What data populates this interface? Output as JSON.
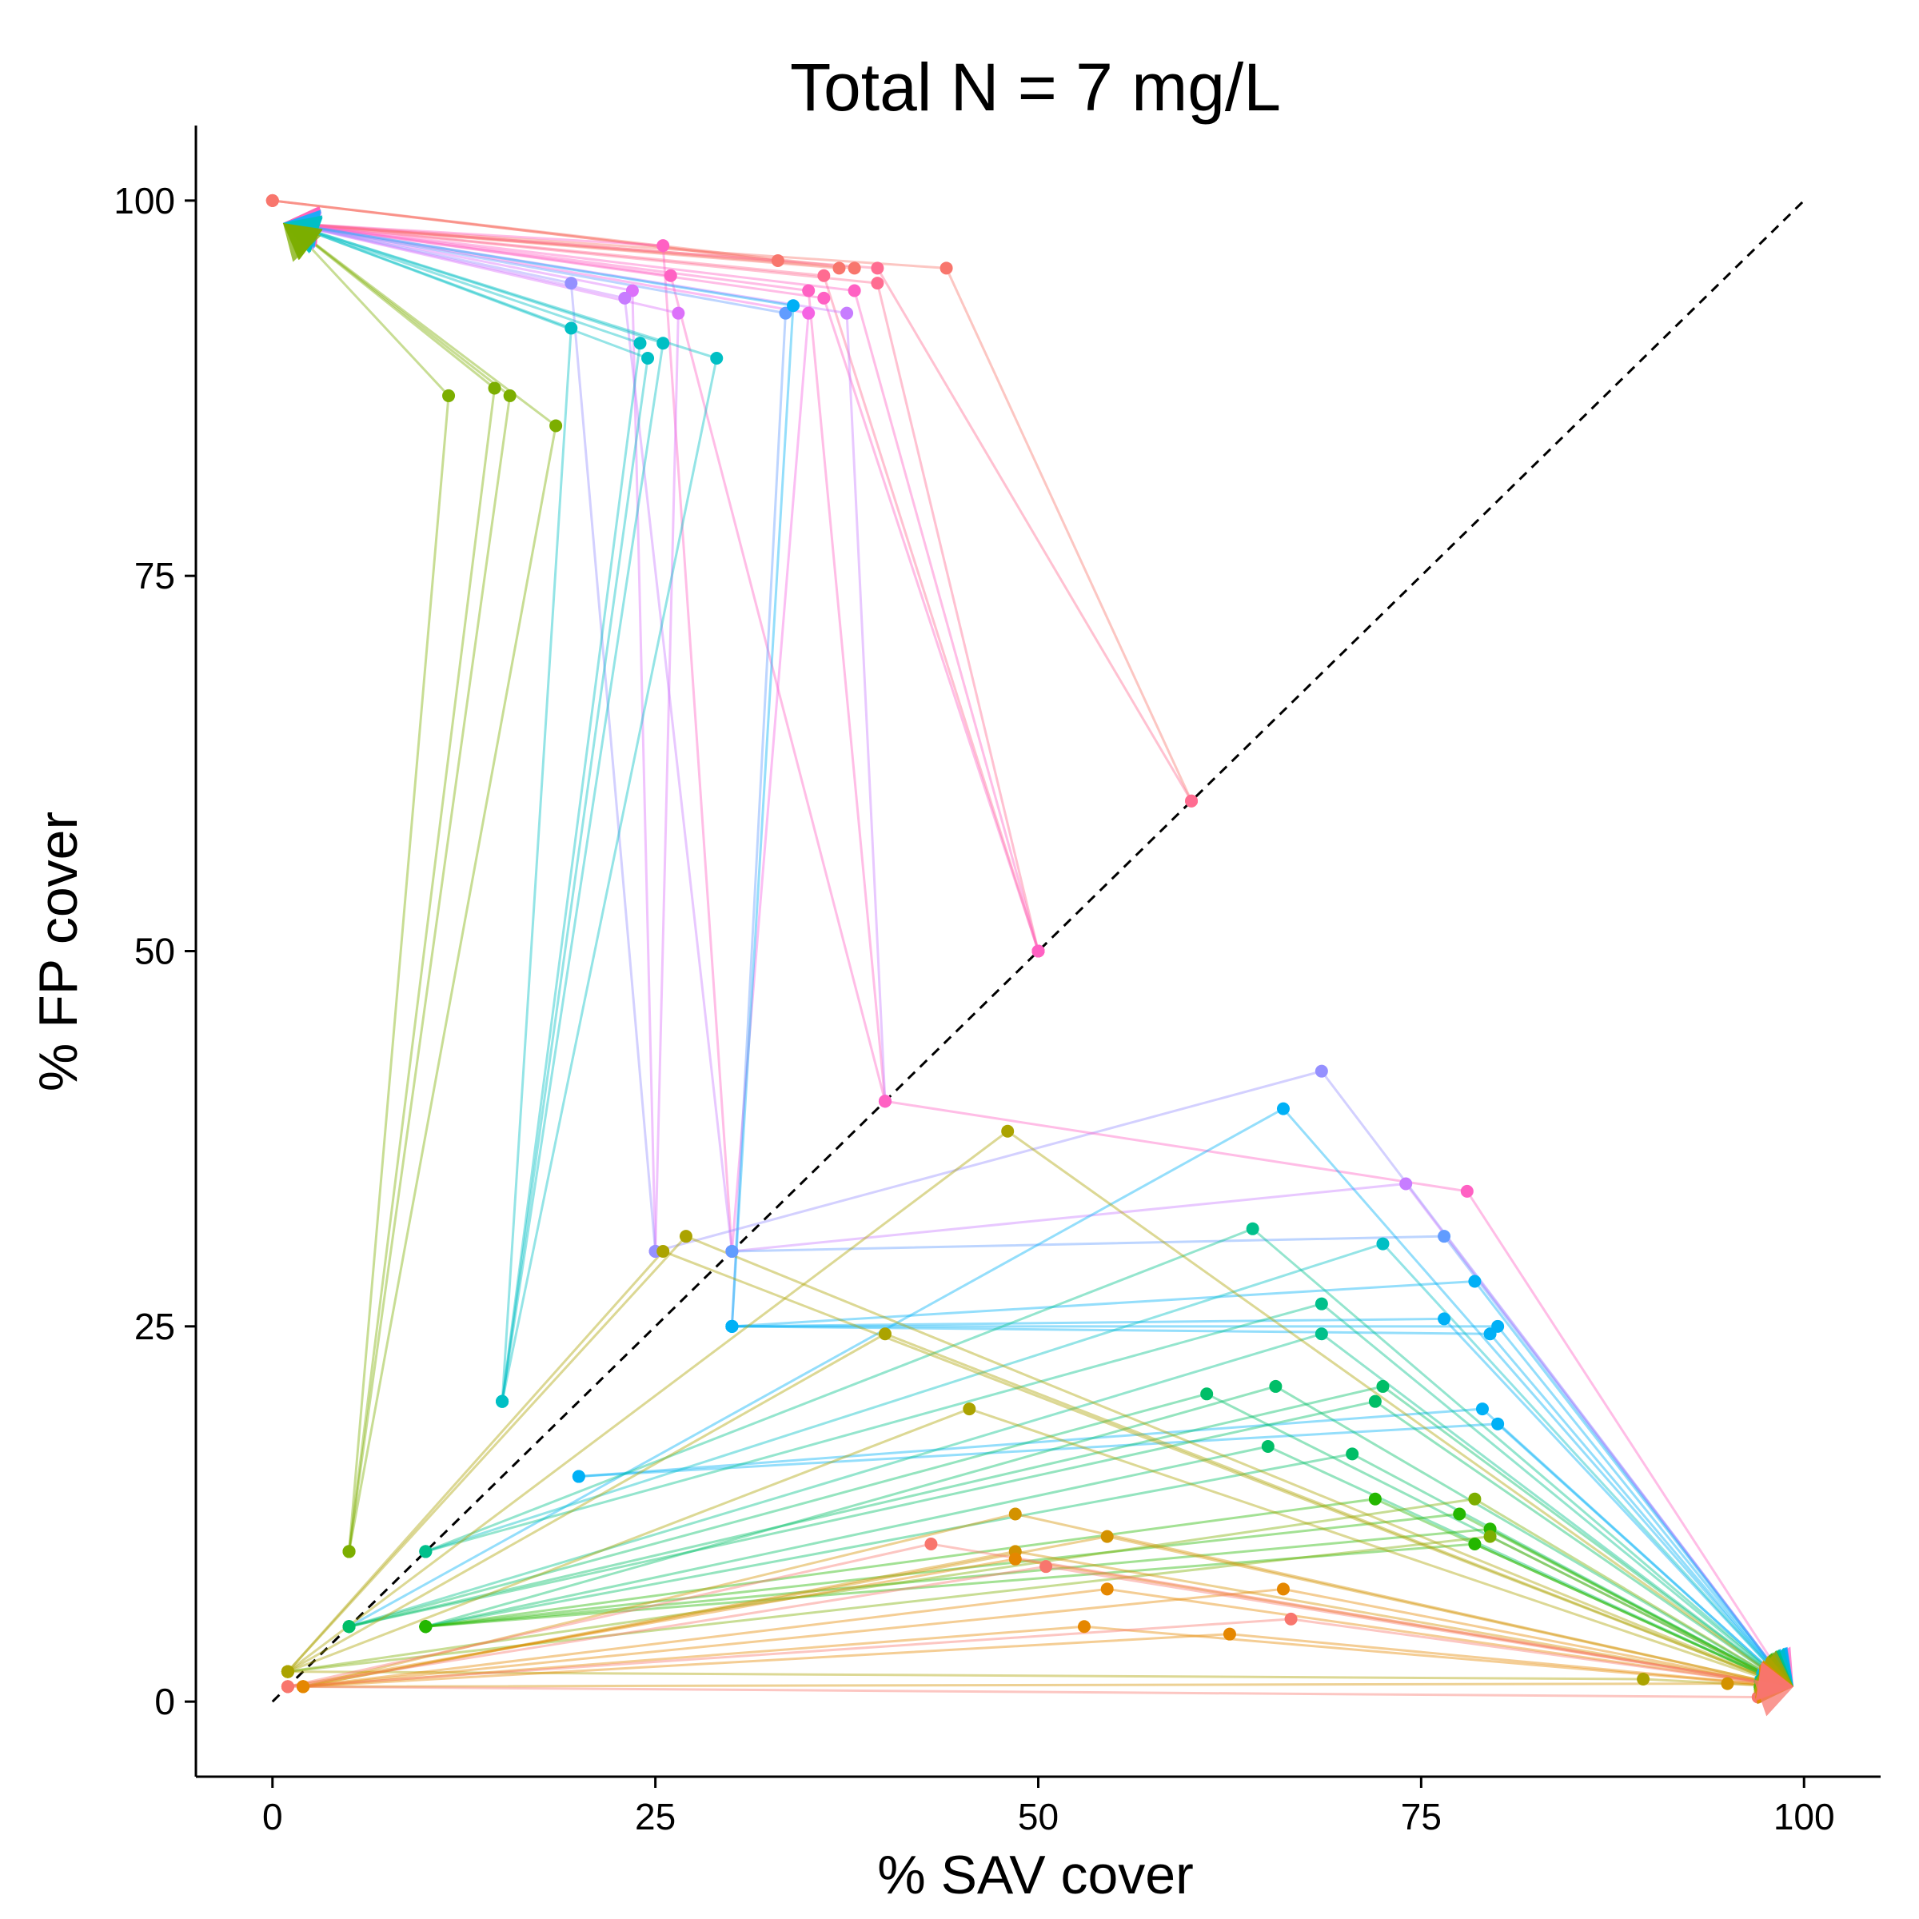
{
  "chart_data": {
    "type": "line",
    "title": "Total N = 7 mg/L",
    "xlabel": "% SAV cover",
    "ylabel": "% FP cover",
    "xlim": [
      -5,
      105
    ],
    "ylim": [
      -5,
      105
    ],
    "xticks": [
      0,
      25,
      50,
      75,
      100
    ],
    "yticks": [
      0,
      25,
      50,
      75,
      100
    ],
    "grid": false,
    "legend": "none",
    "reference_line": {
      "style": "dashed",
      "from": [
        0,
        0
      ],
      "to": [
        100,
        100
      ]
    },
    "end_markers": {
      "top_left": {
        "x": 1,
        "y": 98.5
      },
      "bottom_right": {
        "x": 99,
        "y": 1
      }
    },
    "series": [
      {
        "color": "#F8766D",
        "start": [
          0,
          100
        ],
        "mid": [
          38,
          95.5
        ],
        "end": "top"
      },
      {
        "color": "#F8766D",
        "start": [
          60,
          60
        ],
        "mid": [
          44,
          95.5
        ],
        "end": "top"
      },
      {
        "color": "#F8766D",
        "start": [
          0,
          100
        ],
        "mid": [
          37,
          95.5
        ],
        "end": "top"
      },
      {
        "color": "#F8766D",
        "start": [
          0,
          100
        ],
        "mid": [
          33,
          96
        ],
        "end": "top"
      },
      {
        "color": "#FF6C91",
        "start": [
          60,
          60
        ],
        "mid": [
          39.5,
          95.5
        ],
        "end": "top"
      },
      {
        "color": "#FF6C91",
        "start": [
          50,
          50
        ],
        "mid": [
          36,
          95
        ],
        "end": "top"
      },
      {
        "color": "#FF6C91",
        "start": [
          50,
          50
        ],
        "mid": [
          39.5,
          94.5
        ],
        "end": "top"
      },
      {
        "color": "#FF61C3",
        "start": [
          30,
          30
        ],
        "mid": [
          25.5,
          97
        ],
        "end": "top"
      },
      {
        "color": "#FF61C3",
        "start": [
          40,
          40
        ],
        "mid": [
          26,
          95
        ],
        "end": "top"
      },
      {
        "color": "#FF61C3",
        "start": [
          40,
          40
        ],
        "mid": [
          35,
          94
        ],
        "end": "top"
      },
      {
        "color": "#FF61C3",
        "start": [
          50,
          50
        ],
        "mid": [
          36,
          93.5
        ],
        "end": "top"
      },
      {
        "color": "#FF61C3",
        "start": [
          50,
          50
        ],
        "mid": [
          38,
          94
        ],
        "end": "top"
      },
      {
        "color": "#F564E3",
        "start": [
          30,
          30
        ],
        "mid": [
          35,
          92.5
        ],
        "end": "top"
      },
      {
        "color": "#DC71FA",
        "start": [
          25,
          30
        ],
        "mid": [
          23.5,
          94
        ],
        "end": "top"
      },
      {
        "color": "#DC71FA",
        "start": [
          25,
          30
        ],
        "mid": [
          26.5,
          92.5
        ],
        "end": "top"
      },
      {
        "color": "#C77CFF",
        "start": [
          30,
          30
        ],
        "mid": [
          23,
          93.5
        ],
        "end": "top"
      },
      {
        "color": "#C77CFF",
        "start": [
          40,
          40
        ],
        "mid": [
          37.5,
          92.5
        ],
        "end": "top"
      },
      {
        "color": "#9590FF",
        "start": [
          25,
          30
        ],
        "mid": [
          19.5,
          94.5
        ],
        "end": "top"
      },
      {
        "color": "#619CFF",
        "start": [
          30,
          25
        ],
        "mid": [
          33.5,
          92.5
        ],
        "end": "top"
      },
      {
        "color": "#00B0F6",
        "start": [
          30,
          25
        ],
        "mid": [
          34,
          93
        ],
        "end": "top"
      },
      {
        "color": "#00BFC4",
        "start": [
          15,
          20
        ],
        "mid": [
          19.5,
          91.5
        ],
        "end": "top"
      },
      {
        "color": "#00BFC4",
        "start": [
          15,
          20
        ],
        "mid": [
          24,
          90.5
        ],
        "end": "top"
      },
      {
        "color": "#00BFC4",
        "start": [
          15,
          20
        ],
        "mid": [
          25.5,
          90.5
        ],
        "end": "top"
      },
      {
        "color": "#00BFC4",
        "start": [
          15,
          20
        ],
        "mid": [
          24.5,
          89.5
        ],
        "end": "top"
      },
      {
        "color": "#00BFC4",
        "start": [
          15,
          20
        ],
        "mid": [
          29,
          89.5
        ],
        "end": "top"
      },
      {
        "color": "#7CAE00",
        "start": [
          5,
          10
        ],
        "mid": [
          11.5,
          87
        ],
        "end": "top"
      },
      {
        "color": "#7CAE00",
        "start": [
          5,
          10
        ],
        "mid": [
          14.5,
          87.5
        ],
        "end": "top"
      },
      {
        "color": "#7CAE00",
        "start": [
          5,
          10
        ],
        "mid": [
          15.5,
          87
        ],
        "end": "top"
      },
      {
        "color": "#7CAE00",
        "start": [
          5,
          10
        ],
        "mid": [
          18.5,
          85
        ],
        "end": "top"
      },
      {
        "color": "#9590FF",
        "start": [
          25,
          30
        ],
        "mid": [
          68.5,
          42
        ],
        "end": "bottom"
      },
      {
        "color": "#C77CFF",
        "start": [
          30,
          30
        ],
        "mid": [
          74,
          34.5
        ],
        "end": "bottom"
      },
      {
        "color": "#FF61C3",
        "start": [
          40,
          40
        ],
        "mid": [
          78,
          34
        ],
        "end": "bottom"
      },
      {
        "color": "#619CFF",
        "start": [
          30,
          30
        ],
        "mid": [
          76.5,
          31
        ],
        "end": "bottom"
      },
      {
        "color": "#00B0F6",
        "start": [
          5,
          5
        ],
        "mid": [
          66,
          39.5
        ],
        "end": "bottom"
      },
      {
        "color": "#00B0F6",
        "start": [
          30,
          25
        ],
        "mid": [
          78.5,
          28
        ],
        "end": "bottom"
      },
      {
        "color": "#00B0F6",
        "start": [
          30,
          25
        ],
        "mid": [
          76.5,
          25.5
        ],
        "end": "bottom"
      },
      {
        "color": "#00B0F6",
        "start": [
          30,
          25
        ],
        "mid": [
          79.5,
          24.5
        ],
        "end": "bottom"
      },
      {
        "color": "#00B0F6",
        "start": [
          30,
          25
        ],
        "mid": [
          80,
          25
        ],
        "end": "bottom"
      },
      {
        "color": "#00B0F6",
        "start": [
          20,
          15
        ],
        "mid": [
          79,
          19.5
        ],
        "end": "bottom"
      },
      {
        "color": "#00B0F6",
        "start": [
          20,
          15
        ],
        "mid": [
          80,
          18.5
        ],
        "end": "bottom"
      },
      {
        "color": "#00BFC4",
        "start": [
          10,
          10
        ],
        "mid": [
          72.5,
          30.5
        ],
        "end": "bottom"
      },
      {
        "color": "#00C08B",
        "start": [
          10,
          10
        ],
        "mid": [
          64,
          31.5
        ],
        "end": "bottom"
      },
      {
        "color": "#00C08B",
        "start": [
          10,
          10
        ],
        "mid": [
          68.5,
          26.5
        ],
        "end": "bottom"
      },
      {
        "color": "#00C08B",
        "start": [
          5,
          5
        ],
        "mid": [
          68.5,
          24.5
        ],
        "end": "bottom"
      },
      {
        "color": "#00BE67",
        "start": [
          5,
          5
        ],
        "mid": [
          61,
          20.5
        ],
        "end": "bottom"
      },
      {
        "color": "#00BE67",
        "start": [
          10,
          5
        ],
        "mid": [
          65.5,
          21
        ],
        "end": "bottom"
      },
      {
        "color": "#00BE67",
        "start": [
          5,
          5
        ],
        "mid": [
          72.5,
          21
        ],
        "end": "bottom"
      },
      {
        "color": "#00BE67",
        "start": [
          5,
          5
        ],
        "mid": [
          72,
          20
        ],
        "end": "bottom"
      },
      {
        "color": "#00BE67",
        "start": [
          10,
          5
        ],
        "mid": [
          65,
          17
        ],
        "end": "bottom"
      },
      {
        "color": "#00BE67",
        "start": [
          10,
          5
        ],
        "mid": [
          70.5,
          16.5
        ],
        "end": "bottom"
      },
      {
        "color": "#24B700",
        "start": [
          10,
          5
        ],
        "mid": [
          72,
          13.5
        ],
        "end": "bottom"
      },
      {
        "color": "#24B700",
        "start": [
          10,
          5
        ],
        "mid": [
          77.5,
          12.5
        ],
        "end": "bottom"
      },
      {
        "color": "#24B700",
        "start": [
          10,
          5
        ],
        "mid": [
          79.5,
          11.5
        ],
        "end": "bottom"
      },
      {
        "color": "#24B700",
        "start": [
          10,
          5
        ],
        "mid": [
          78.5,
          10.5
        ],
        "end": "bottom"
      },
      {
        "color": "#7CAE00",
        "start": [
          1,
          2
        ],
        "mid": [
          78.5,
          13.5
        ],
        "end": "bottom"
      },
      {
        "color": "#7CAE00",
        "start": [
          1,
          2
        ],
        "mid": [
          79.5,
          11
        ],
        "end": "bottom"
      },
      {
        "color": "#ABA300",
        "start": [
          1,
          2
        ],
        "mid": [
          48,
          38
        ],
        "end": "bottom"
      },
      {
        "color": "#ABA300",
        "start": [
          1,
          2
        ],
        "mid": [
          27,
          31
        ],
        "end": "bottom"
      },
      {
        "color": "#ABA300",
        "start": [
          1,
          2
        ],
        "mid": [
          25.5,
          30
        ],
        "end": "bottom"
      },
      {
        "color": "#ABA300",
        "start": [
          1,
          2
        ],
        "mid": [
          40,
          24.5
        ],
        "end": "bottom"
      },
      {
        "color": "#ABA300",
        "start": [
          1,
          2
        ],
        "mid": [
          45.5,
          19.5
        ],
        "end": "bottom"
      },
      {
        "color": "#ABA300",
        "start": [
          1,
          2
        ],
        "mid": [
          89.5,
          1.5
        ],
        "end": "bottom"
      },
      {
        "color": "#D39200",
        "start": [
          2,
          1
        ],
        "mid": [
          48.5,
          12.5
        ],
        "end": "bottom"
      },
      {
        "color": "#D39200",
        "start": [
          2,
          1
        ],
        "mid": [
          54.5,
          11
        ],
        "end": "bottom"
      },
      {
        "color": "#D39200",
        "start": [
          2,
          1
        ],
        "mid": [
          48.5,
          10
        ],
        "end": "bottom"
      },
      {
        "color": "#D39200",
        "start": [
          2,
          1
        ],
        "mid": [
          95,
          1.2
        ],
        "end": "bottom"
      },
      {
        "color": "#E58700",
        "start": [
          1,
          1
        ],
        "mid": [
          48.5,
          9.5
        ],
        "end": "bottom"
      },
      {
        "color": "#E58700",
        "start": [
          2,
          1
        ],
        "mid": [
          54.5,
          7.5
        ],
        "end": "bottom"
      },
      {
        "color": "#E58700",
        "start": [
          2,
          1
        ],
        "mid": [
          66,
          7.5
        ],
        "end": "bottom"
      },
      {
        "color": "#E58700",
        "start": [
          2,
          1
        ],
        "mid": [
          53,
          5
        ],
        "end": "bottom"
      },
      {
        "color": "#E58700",
        "start": [
          2,
          1
        ],
        "mid": [
          62.5,
          4.5
        ],
        "end": "bottom"
      },
      {
        "color": "#F8766D",
        "start": [
          1,
          1
        ],
        "mid": [
          43,
          10.5
        ],
        "end": "bottom"
      },
      {
        "color": "#F8766D",
        "start": [
          1,
          1
        ],
        "mid": [
          50.5,
          9
        ],
        "end": "bottom"
      },
      {
        "color": "#F8766D",
        "start": [
          1,
          1
        ],
        "mid": [
          66.5,
          5.5
        ],
        "end": "bottom"
      },
      {
        "color": "#F8766D",
        "start": [
          1,
          1
        ],
        "mid": [
          97,
          0.3
        ],
        "end": "bottom"
      }
    ]
  }
}
